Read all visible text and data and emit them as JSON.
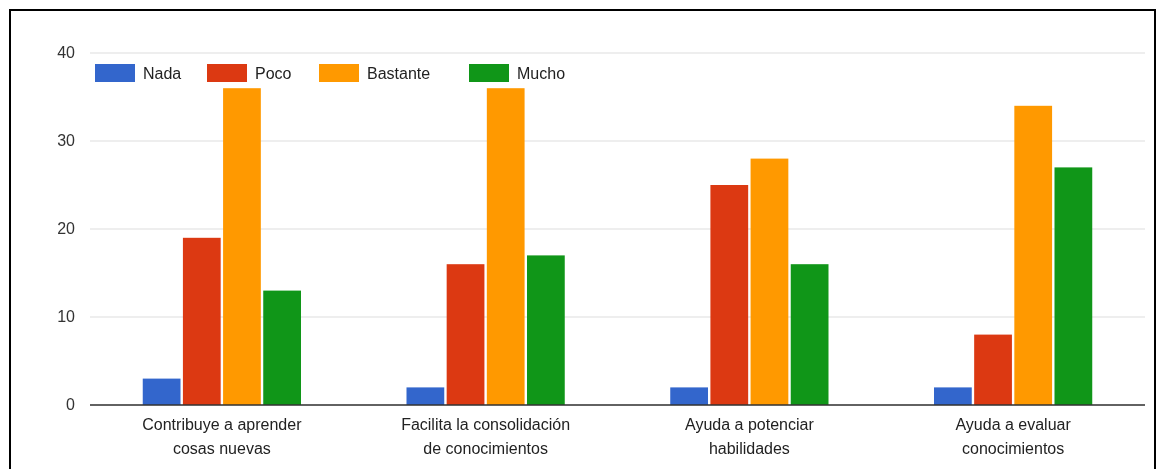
{
  "chart_data": {
    "type": "bar",
    "categories": [
      "Contribuye a aprender cosas nuevas",
      "Facilita la consolidación de conocimientos",
      "Ayuda a potenciar habilidades",
      "Ayuda a evaluar conocimientos"
    ],
    "series": [
      {
        "name": "Nada",
        "color": "#3366cc",
        "values": [
          3,
          2,
          2,
          2
        ]
      },
      {
        "name": "Poco",
        "color": "#dc3912",
        "values": [
          19,
          16,
          25,
          8
        ]
      },
      {
        "name": "Bastante",
        "color": "#ff9900",
        "values": [
          36,
          36,
          28,
          34
        ]
      },
      {
        "name": "Mucho",
        "color": "#109618",
        "values": [
          13,
          17,
          16,
          27
        ]
      }
    ],
    "ylim": [
      0,
      40
    ],
    "yticks": [
      0,
      10,
      20,
      30,
      40
    ],
    "grid": "y",
    "legend": "top left"
  }
}
